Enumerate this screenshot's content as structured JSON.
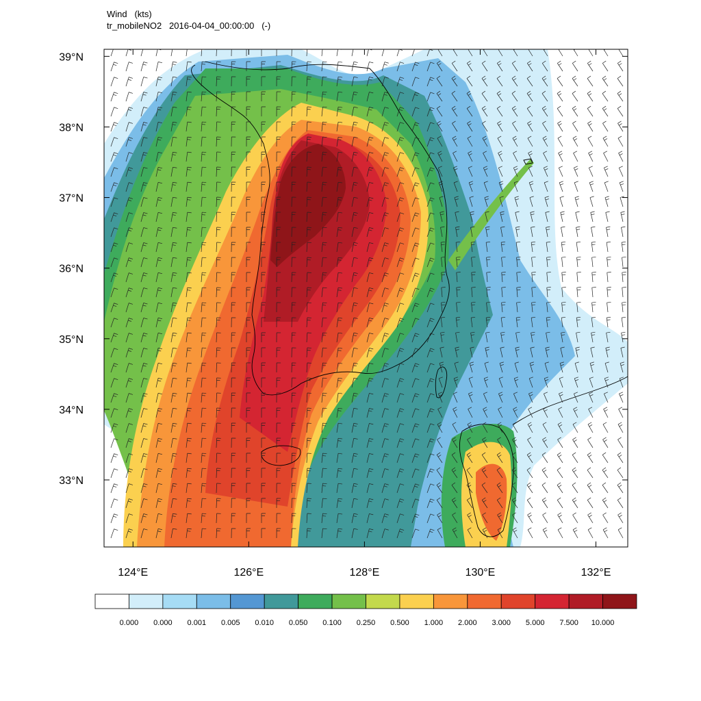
{
  "title": {
    "line1": "Wind   (kts)",
    "line2": "tr_mobileNO2   2016-04-04_00:00:00   (-)"
  },
  "map": {
    "lon_range": [
      123.5,
      132.55
    ],
    "lat_range": [
      32.05,
      39.1
    ],
    "lat_ticks": [
      {
        "value": 39,
        "label": "39°N"
      },
      {
        "value": 38,
        "label": "38°N"
      },
      {
        "value": 37,
        "label": "37°N"
      },
      {
        "value": 36,
        "label": "36°N"
      },
      {
        "value": 35,
        "label": "35°N"
      },
      {
        "value": 34,
        "label": "34°N"
      },
      {
        "value": 33,
        "label": "33°N"
      }
    ],
    "lon_ticks": [
      {
        "value": 124,
        "label": "124°E"
      },
      {
        "value": 126,
        "label": "126°E"
      },
      {
        "value": 128,
        "label": "128°E"
      },
      {
        "value": 130,
        "label": "130°E"
      },
      {
        "value": 132,
        "label": "132°E"
      }
    ]
  },
  "colorbar": {
    "colors": [
      "#ffffff",
      "#d2eefa",
      "#a6dcf5",
      "#7bbde8",
      "#5497d3",
      "#41999a",
      "#3eab5c",
      "#74c04a",
      "#c3d94c",
      "#fbd04f",
      "#f8963a",
      "#f06930",
      "#e0442b",
      "#d42532",
      "#b01c26",
      "#8f1519"
    ],
    "labels": [
      "0.000",
      "0.000",
      "0.001",
      "0.005",
      "0.010",
      "0.050",
      "0.100",
      "0.250",
      "0.500",
      "1.000",
      "2.000",
      "3.000",
      "5.000",
      "7.500",
      "10.000"
    ]
  }
}
